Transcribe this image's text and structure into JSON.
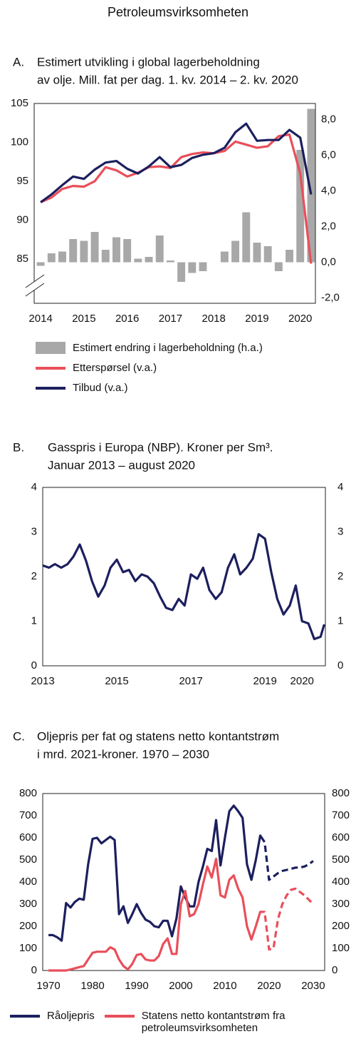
{
  "title": "Petroleumsvirksomheten",
  "chart_data": [
    {
      "type": "combo",
      "label": "A.",
      "title": [
        "Estimert utvikling i global lagerbeholdning",
        "av olje. Mill. fat per dag. 1. kv. 2014 – 2. kv. 2020"
      ],
      "x": [
        2014,
        2014.25,
        2014.5,
        2014.75,
        2015,
        2015.25,
        2015.5,
        2015.75,
        2016,
        2016.25,
        2016.5,
        2016.75,
        2017,
        2017.25,
        2017.5,
        2017.75,
        2018,
        2018.25,
        2018.5,
        2018.75,
        2019,
        2019.25,
        2019.5,
        2019.75,
        2020,
        2020.25
      ],
      "xlim": [
        2013.85,
        2020.35
      ],
      "xticks": [
        2014,
        2015,
        2016,
        2017,
        2018,
        2019,
        2020
      ],
      "ylim": [
        79.3,
        105
      ],
      "yticks": [
        85,
        90,
        95,
        100,
        105
      ],
      "y2lim": [
        -2.3,
        8.9
      ],
      "y2ticks": [
        {
          "value": -2,
          "label": "-2,0"
        },
        {
          "value": 0,
          "label": "0,0"
        },
        {
          "value": 2,
          "label": "2,0"
        },
        {
          "value": 4,
          "label": "4,0"
        },
        {
          "value": 6,
          "label": "6,0"
        },
        {
          "value": 8,
          "label": "8,0"
        }
      ],
      "axis_break": true,
      "series": [
        {
          "name": "Estimert endring i lagerbeholdning (h.a.)",
          "type": "bar",
          "axis": "y2",
          "color": "#a8a8a8",
          "values": [
            -0.2,
            0.5,
            0.6,
            1.3,
            1.2,
            1.7,
            0.7,
            1.4,
            1.3,
            0.2,
            0.3,
            1.5,
            0.1,
            -1.1,
            -0.6,
            -0.5,
            0.0,
            0.6,
            1.2,
            2.8,
            1.1,
            0.9,
            -0.5,
            0.7,
            6.3,
            8.6
          ]
        },
        {
          "name": "Etterspørsel (v.a.)",
          "type": "line",
          "color": "#e94f5a",
          "values": [
            92.3,
            92.9,
            94.0,
            94.4,
            94.3,
            95.0,
            96.8,
            96.4,
            95.6,
            96.1,
            96.8,
            96.9,
            96.7,
            98.1,
            98.5,
            98.7,
            98.6,
            98.9,
            100.1,
            99.7,
            99.3,
            99.5,
            100.8,
            101.0,
            96.0,
            84.4
          ]
        },
        {
          "name": "Tilbud (v.a.)",
          "type": "line",
          "color": "#1c1f5e",
          "values": [
            92.3,
            93.3,
            94.5,
            95.6,
            95.3,
            96.5,
            97.4,
            97.6,
            96.6,
            96.0,
            96.9,
            98.1,
            96.8,
            97.1,
            98.0,
            98.4,
            98.6,
            99.3,
            101.3,
            102.4,
            100.2,
            100.3,
            100.3,
            101.6,
            100.6,
            93.3
          ]
        }
      ]
    },
    {
      "type": "line",
      "label": "B.",
      "title": [
        "Gasspris i Europa (NBP). Kroner per Sm³.",
        "Januar 2013 – august 2020"
      ],
      "x": [
        2013.0,
        2013.17,
        2013.33,
        2013.5,
        2013.67,
        2013.83,
        2014.0,
        2014.17,
        2014.33,
        2014.5,
        2014.67,
        2014.83,
        2015.0,
        2015.17,
        2015.33,
        2015.5,
        2015.67,
        2015.83,
        2016.0,
        2016.17,
        2016.33,
        2016.5,
        2016.67,
        2016.83,
        2017.0,
        2017.17,
        2017.33,
        2017.5,
        2017.67,
        2017.83,
        2018.0,
        2018.17,
        2018.33,
        2018.5,
        2018.67,
        2018.83,
        2019.0,
        2019.17,
        2019.33,
        2019.5,
        2019.67,
        2019.83,
        2020.0,
        2020.17,
        2020.33,
        2020.5,
        2020.6
      ],
      "xlim": [
        2013,
        2020.63
      ],
      "xticks": [
        2013,
        2015,
        2017,
        2019,
        2020
      ],
      "ylim": [
        0,
        4
      ],
      "yticks": [
        0,
        1,
        2,
        3,
        4
      ],
      "mirror_yticks": true,
      "series": [
        {
          "color": "#1c1f5e",
          "values": [
            2.25,
            2.2,
            2.28,
            2.2,
            2.28,
            2.45,
            2.72,
            2.35,
            1.9,
            1.55,
            1.8,
            2.2,
            2.38,
            2.1,
            2.15,
            1.9,
            2.05,
            2.0,
            1.85,
            1.55,
            1.3,
            1.25,
            1.5,
            1.35,
            2.05,
            1.95,
            2.2,
            1.7,
            1.5,
            1.65,
            2.2,
            2.5,
            2.05,
            2.2,
            2.4,
            2.95,
            2.85,
            2.1,
            1.5,
            1.15,
            1.35,
            1.8,
            1.0,
            0.95,
            0.6,
            0.65,
            0.93
          ]
        }
      ]
    },
    {
      "type": "line",
      "label": "C.",
      "title": [
        "Oljepris per fat og statens netto kontantstrøm",
        "i mrd. 2021-kroner. 1970 – 2030"
      ],
      "x": [
        1970,
        1971,
        1972,
        1973,
        1974,
        1975,
        1976,
        1977,
        1978,
        1979,
        1980,
        1981,
        1982,
        1983,
        1984,
        1985,
        1986,
        1987,
        1988,
        1989,
        1990,
        1991,
        1992,
        1993,
        1994,
        1995,
        1996,
        1997,
        1998,
        1999,
        2000,
        2001,
        2002,
        2003,
        2004,
        2005,
        2006,
        2007,
        2008,
        2009,
        2010,
        2011,
        2012,
        2013,
        2014,
        2015,
        2016,
        2017,
        2018,
        2019,
        2020,
        2021,
        2022,
        2023,
        2024,
        2025,
        2026,
        2027,
        2028,
        2029,
        2030
      ],
      "xlim": [
        1968.7,
        2032.6
      ],
      "xticks": [
        1970,
        1980,
        1990,
        2000,
        2010,
        2020,
        2030
      ],
      "ylim": [
        0,
        800
      ],
      "yticks": [
        0,
        100,
        200,
        300,
        400,
        500,
        600,
        700,
        800
      ],
      "mirror_yticks": true,
      "projection_start": 2019,
      "series": [
        {
          "name": "Råoljepris",
          "color": "#1c1f5e",
          "values": [
            160,
            160,
            150,
            135,
            305,
            285,
            310,
            325,
            320,
            480,
            595,
            600,
            575,
            590,
            605,
            590,
            255,
            290,
            215,
            255,
            300,
            260,
            230,
            220,
            200,
            195,
            225,
            225,
            155,
            235,
            380,
            330,
            290,
            290,
            400,
            470,
            550,
            540,
            680,
            475,
            600,
            720,
            745,
            720,
            690,
            480,
            410,
            500,
            610,
            580,
            410,
            425,
            440,
            450,
            455,
            460,
            465,
            465,
            470,
            480,
            495
          ]
        },
        {
          "name": "Statens netto kontantstrøm fra petroleumsvirksomheten",
          "color": "#e94f5a",
          "values": [
            0,
            0,
            0,
            0,
            0,
            5,
            10,
            15,
            20,
            50,
            80,
            85,
            85,
            85,
            105,
            95,
            50,
            20,
            5,
            30,
            70,
            75,
            50,
            45,
            45,
            65,
            120,
            145,
            75,
            75,
            300,
            360,
            245,
            255,
            300,
            390,
            470,
            420,
            505,
            340,
            330,
            410,
            430,
            370,
            330,
            200,
            140,
            200,
            265,
            265,
            95,
            100,
            230,
            300,
            340,
            365,
            370,
            355,
            340,
            320,
            300
          ]
        }
      ]
    }
  ]
}
